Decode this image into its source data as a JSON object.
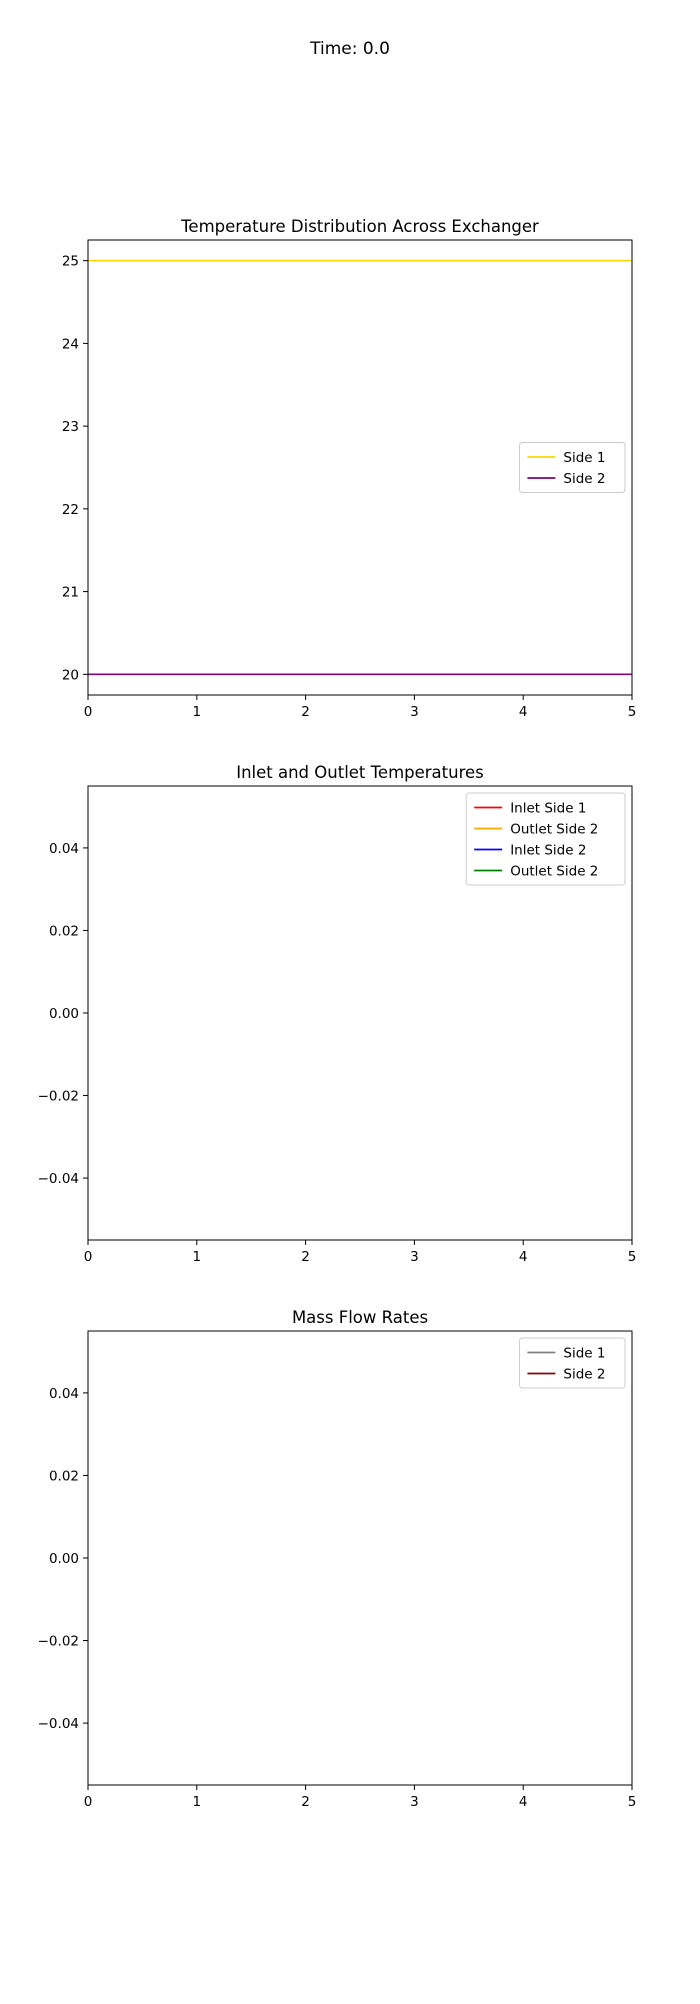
{
  "figure": {
    "suptitle": "Time: 0.0"
  },
  "chart_data": [
    {
      "type": "line",
      "title": "Temperature Distribution Across Exchanger",
      "xlabel": "",
      "ylabel": "",
      "xlim": [
        0,
        5
      ],
      "ylim": [
        19.75,
        25.25
      ],
      "xticks": [
        0,
        1,
        2,
        3,
        4,
        5
      ],
      "xtick_labels": [
        "0",
        "1",
        "2",
        "3",
        "4",
        "5"
      ],
      "yticks": [
        20,
        21,
        22,
        23,
        24,
        25
      ],
      "ytick_labels": [
        "20",
        "21",
        "22",
        "23",
        "24",
        "25"
      ],
      "grid": false,
      "legend_position": "center-right",
      "series": [
        {
          "name": "Side 1",
          "color": "#ffd700",
          "x": [
            0,
            5
          ],
          "y": [
            25,
            25
          ]
        },
        {
          "name": "Side 2",
          "color": "#800080",
          "x": [
            0,
            5
          ],
          "y": [
            20,
            20
          ]
        }
      ]
    },
    {
      "type": "line",
      "title": "Inlet and Outlet Temperatures",
      "xlabel": "",
      "ylabel": "",
      "xlim": [
        0,
        5
      ],
      "ylim": [
        -0.055,
        0.055
      ],
      "xticks": [
        0,
        1,
        2,
        3,
        4,
        5
      ],
      "xtick_labels": [
        "0",
        "1",
        "2",
        "3",
        "4",
        "5"
      ],
      "yticks": [
        -0.04,
        -0.02,
        0,
        0.02,
        0.04
      ],
      "ytick_labels": [
        "−0.04",
        "−0.02",
        "0.00",
        "0.02",
        "0.04"
      ],
      "grid": false,
      "legend_position": "top-right",
      "series": [
        {
          "name": "Inlet Side 1",
          "color": "#ff0000",
          "x": [],
          "y": []
        },
        {
          "name": "Outlet Side 2",
          "color": "#ffa500",
          "x": [],
          "y": []
        },
        {
          "name": "Inlet Side 2",
          "color": "#0000ff",
          "x": [],
          "y": []
        },
        {
          "name": "Outlet Side 2",
          "color": "#008000",
          "x": [],
          "y": []
        }
      ]
    },
    {
      "type": "line",
      "title": "Mass Flow Rates",
      "xlabel": "",
      "ylabel": "",
      "xlim": [
        0,
        5
      ],
      "ylim": [
        -0.055,
        0.055
      ],
      "xticks": [
        0,
        1,
        2,
        3,
        4,
        5
      ],
      "xtick_labels": [
        "0",
        "1",
        "2",
        "3",
        "4",
        "5"
      ],
      "yticks": [
        -0.04,
        -0.02,
        0,
        0.02,
        0.04
      ],
      "ytick_labels": [
        "−0.04",
        "−0.02",
        "0.00",
        "0.02",
        "0.04"
      ],
      "grid": false,
      "legend_position": "top-right",
      "series": [
        {
          "name": "Side 1",
          "color": "#808080",
          "x": [],
          "y": []
        },
        {
          "name": "Side 2",
          "color": "#8b0000",
          "x": [],
          "y": []
        }
      ]
    }
  ]
}
